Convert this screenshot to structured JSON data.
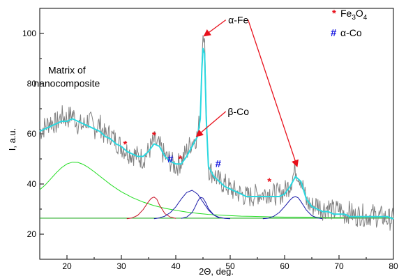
{
  "chart_data": {
    "type": "line",
    "xlabel": "2Θ, deg.",
    "ylabel": "I, a.u.",
    "xlim": [
      15,
      80
    ],
    "ylim": [
      10,
      110
    ],
    "xticks": [
      20,
      30,
      40,
      50,
      60,
      70,
      80
    ],
    "yticks": [
      20,
      40,
      60,
      80,
      100
    ],
    "grid": false,
    "legend": {
      "placement": "top-right",
      "entries": [
        {
          "symbol": "*",
          "symbol_color": "#e8101b",
          "label_main": "Fe",
          "sub1": "3",
          "mid": "O",
          "sub2": "4"
        },
        {
          "symbol": "#",
          "symbol_color": "#1515e0",
          "label": "α-Co"
        }
      ]
    },
    "annotations": [
      {
        "id": "matrix",
        "lines": [
          "Matrix of",
          "nanocomposite"
        ],
        "at": [
          21,
          84
        ]
      },
      {
        "id": "alpha-fe",
        "text": "α-Fe",
        "text_at": [
          51.5,
          104
        ],
        "arrows_to": [
          [
            45.2,
            99
          ],
          [
            62.3,
            47
          ]
        ]
      },
      {
        "id": "beta-co",
        "text": "β-Co",
        "text_at": [
          51.5,
          67.5
        ],
        "arrows_to": [
          [
            43.8,
            59
          ]
        ]
      }
    ],
    "markers": [
      {
        "symbol": "*",
        "color": "#e8101b",
        "x": 30.7,
        "y": 55.8
      },
      {
        "symbol": "*",
        "color": "#e8101b",
        "x": 36.0,
        "y": 59.5
      },
      {
        "symbol": "*",
        "color": "#e8101b",
        "x": 40.8,
        "y": 50.0
      },
      {
        "symbol": "*",
        "color": "#e8101b",
        "x": 57.2,
        "y": 41.0
      },
      {
        "symbol": "#",
        "color": "#1515e0",
        "x": 39.0,
        "y": 50.0
      },
      {
        "symbol": "#",
        "color": "#1515e0",
        "x": 47.8,
        "y": 48.0
      }
    ],
    "series": [
      {
        "role": "experimental",
        "color": "#808080",
        "x": [
          15,
          16,
          17,
          18,
          19,
          20,
          21,
          22,
          23,
          24,
          25,
          26,
          27,
          28,
          29,
          30,
          31,
          32,
          33,
          34,
          35,
          36,
          37,
          38,
          39,
          40,
          41,
          42,
          43,
          44,
          44.5,
          44.8,
          45.0,
          45.3,
          45.6,
          46,
          47,
          48,
          49,
          50,
          51,
          52,
          53,
          54,
          55,
          56,
          57,
          58,
          59,
          60,
          61,
          62,
          63,
          64,
          65,
          66,
          67,
          68,
          69,
          70,
          71,
          72,
          73,
          74,
          75,
          76,
          77,
          78,
          79,
          80
        ],
        "y": [
          61,
          63,
          65,
          64,
          67,
          66,
          68,
          64,
          63,
          66,
          62,
          64,
          59,
          60,
          57,
          55,
          53,
          52,
          51,
          50,
          53,
          57,
          55,
          51,
          49,
          47,
          49,
          53,
          57,
          59,
          68,
          88,
          100,
          98,
          70,
          46,
          44,
          41,
          40,
          38,
          37,
          36,
          35,
          35,
          36,
          36,
          37,
          36,
          36,
          37,
          40,
          46,
          42,
          33,
          31,
          32,
          30,
          31,
          29,
          30,
          28,
          29,
          27,
          28,
          27,
          28,
          27,
          27,
          26,
          26
        ]
      },
      {
        "role": "fit-total",
        "color": "#2ad8e0",
        "x": [
          15,
          16,
          17,
          18,
          19,
          20,
          21,
          22,
          23,
          24,
          25,
          26,
          27,
          28,
          29,
          30,
          31,
          32,
          33,
          34,
          35,
          36,
          37,
          38,
          39,
          40,
          41,
          42,
          43,
          44,
          44.5,
          44.8,
          45.0,
          45.3,
          45.6,
          46,
          47,
          48,
          49,
          50,
          51,
          52,
          53,
          54,
          55,
          56,
          57,
          58,
          59,
          60,
          61,
          62,
          63,
          64,
          65,
          66,
          67,
          68,
          69,
          70,
          71,
          72,
          73,
          74,
          75,
          76,
          77,
          78,
          79,
          80
        ],
        "y": [
          61,
          62,
          63,
          64,
          65,
          65,
          66,
          65,
          64,
          63,
          62,
          61,
          59,
          58,
          56,
          55,
          53,
          52,
          51,
          51,
          53,
          56,
          55,
          51,
          49,
          48,
          48,
          51,
          55,
          59,
          66,
          86,
          94,
          92,
          66,
          47,
          43,
          41,
          39,
          38,
          37,
          36,
          35,
          35,
          35,
          35,
          35,
          35,
          35,
          36,
          39,
          43,
          41,
          34,
          31,
          30,
          29,
          29,
          28,
          28,
          28,
          27,
          27,
          27,
          27,
          27,
          27,
          27,
          27,
          26
        ]
      },
      {
        "role": "component-matrix",
        "color": "#22dd22",
        "x": [
          15,
          16,
          17,
          18,
          19,
          20,
          21,
          22,
          23,
          24,
          25,
          26,
          27,
          28,
          29,
          30,
          32,
          34,
          36,
          38,
          40,
          42,
          44,
          46,
          48,
          50,
          52,
          54,
          56,
          58,
          60,
          62,
          64,
          66,
          68,
          70,
          72,
          74,
          76,
          78,
          80
        ],
        "y": [
          37.7,
          39.6,
          42.0,
          44.4,
          46.5,
          48.0,
          48.7,
          48.6,
          47.8,
          46.5,
          44.9,
          43.2,
          41.5,
          39.8,
          38.3,
          36.9,
          34.6,
          32.8,
          31.4,
          30.3,
          29.5,
          28.8,
          28.3,
          27.9,
          27.6,
          27.4,
          27.2,
          27.1,
          27.0,
          26.9,
          26.8,
          26.8,
          26.7,
          26.7,
          26.6,
          26.6,
          26.6,
          26.5,
          26.5,
          26.5,
          26.5
        ]
      },
      {
        "role": "component-fe3o4",
        "color": "#c81428",
        "x": [
          31,
          32,
          33,
          34,
          35,
          35.5,
          36,
          36.5,
          37,
          38,
          39,
          40
        ],
        "y": [
          26.2,
          26.5,
          27.5,
          29.8,
          33.0,
          34.3,
          34.8,
          34.0,
          31.6,
          28.2,
          26.8,
          26.3
        ]
      },
      {
        "role": "component-beta-co",
        "color": "#1a1aa8",
        "x": [
          36,
          37,
          38,
          39,
          40,
          41,
          42,
          43,
          44,
          45,
          46,
          47,
          48,
          49,
          50
        ],
        "y": [
          26.2,
          26.5,
          27.2,
          28.6,
          30.9,
          34.0,
          36.6,
          37.5,
          36.0,
          32.8,
          29.6,
          27.6,
          26.7,
          26.3,
          26.2
        ]
      },
      {
        "role": "component-alpha-fe",
        "color": "#1a1aa8",
        "x": [
          41,
          42,
          43,
          43.5,
          44,
          44.5,
          45,
          45.5,
          46,
          47,
          48
        ],
        "y": [
          26.3,
          26.8,
          28.6,
          30.6,
          33.0,
          34.7,
          34.4,
          32.6,
          30.2,
          27.6,
          26.4
        ]
      },
      {
        "role": "component-alpha-co",
        "color": "#1a1aa8",
        "x": [
          56,
          57,
          58,
          59,
          60,
          61,
          61.5,
          62,
          62.5,
          63,
          64,
          65,
          66,
          67
        ],
        "y": [
          26.2,
          26.4,
          27.1,
          28.6,
          31.0,
          33.6,
          34.6,
          35.0,
          34.5,
          33.0,
          29.6,
          27.4,
          26.5,
          26.2
        ]
      },
      {
        "role": "baseline",
        "color": "#22aa22",
        "x": [
          15,
          80
        ],
        "y": [
          26.4,
          26.4
        ]
      }
    ]
  }
}
